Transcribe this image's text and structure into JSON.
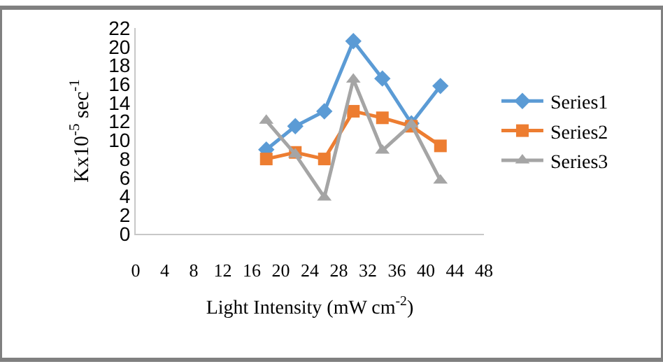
{
  "chart_data": {
    "type": "line",
    "xlabel": "Light Intensity (mW cm$^{-2}$)",
    "ylabel": "Kx10$^{-5}$ sec$^{-1}$",
    "x": [
      18,
      22,
      26,
      30,
      34,
      38,
      42
    ],
    "series": [
      {
        "name": "Series1",
        "color": "#5b9bd5",
        "marker": "diamond",
        "values": [
          9,
          11.5,
          13.1,
          20.6,
          16.6,
          11.8,
          15.8
        ]
      },
      {
        "name": "Series2",
        "color": "#ed7d31",
        "marker": "square",
        "values": [
          8,
          8.7,
          8,
          13.1,
          12.4,
          11.5,
          9.4
        ]
      },
      {
        "name": "Series3",
        "color": "#a5a5a5",
        "marker": "triangle",
        "values": [
          12.1,
          8.5,
          3.9,
          16.5,
          8.9,
          11.7,
          5.7
        ]
      }
    ],
    "xlim": [
      0,
      48
    ],
    "xticks": [
      0,
      4,
      8,
      12,
      16,
      20,
      24,
      28,
      32,
      36,
      40,
      44,
      48
    ],
    "ylim": [
      0,
      22
    ],
    "yticks": [
      0,
      2,
      4,
      6,
      8,
      10,
      12,
      14,
      16,
      18,
      20,
      22
    ],
    "legend": "right"
  }
}
